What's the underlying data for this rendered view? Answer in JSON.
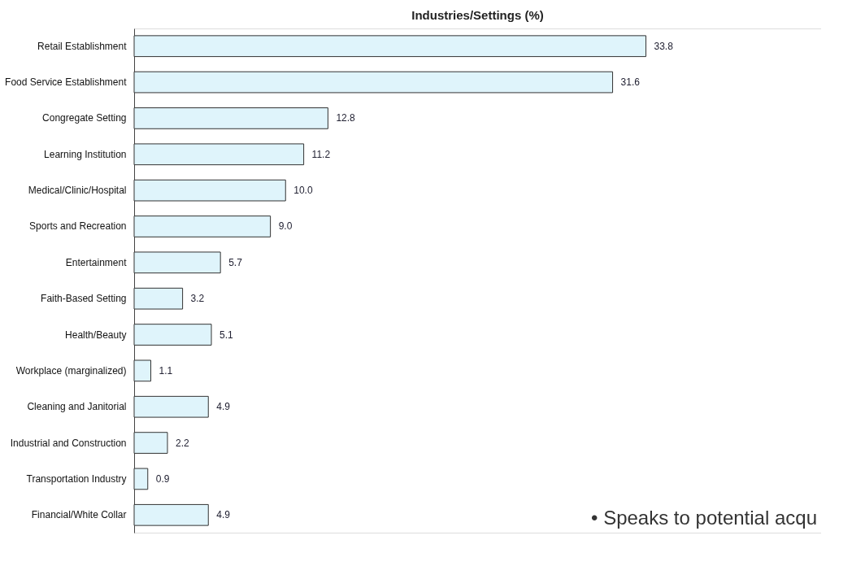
{
  "chart_data": {
    "type": "bar",
    "orientation": "horizontal",
    "title": "Industries/Settings (%)",
    "categories": [
      "Retail Establishment",
      "Food Service Establishment",
      "Congregate Setting",
      "Learning Institution",
      "Medical/Clinic/Hospital",
      "Sports and Recreation",
      "Entertainment",
      "Faith-Based Setting",
      "Health/Beauty",
      "Workplace (marginalized)",
      "Cleaning and Janitorial",
      "Industrial and Construction",
      "Transportation Industry",
      "Financial/White Collar"
    ],
    "values": [
      33.8,
      31.6,
      12.8,
      11.2,
      10.0,
      9.0,
      5.7,
      3.2,
      5.1,
      1.1,
      4.9,
      2.2,
      0.9,
      4.9
    ],
    "value_labels": [
      "33.8",
      "31.6",
      "12.8",
      "11.2",
      "10.0",
      "9.0",
      "5.7",
      "3.2",
      "5.1",
      "1.1",
      "4.9",
      "2.2",
      "0.9",
      "4.9"
    ],
    "color": "#dff4fb",
    "grid": false,
    "annotations": [
      "•   Speaks to potential acqu"
    ]
  }
}
